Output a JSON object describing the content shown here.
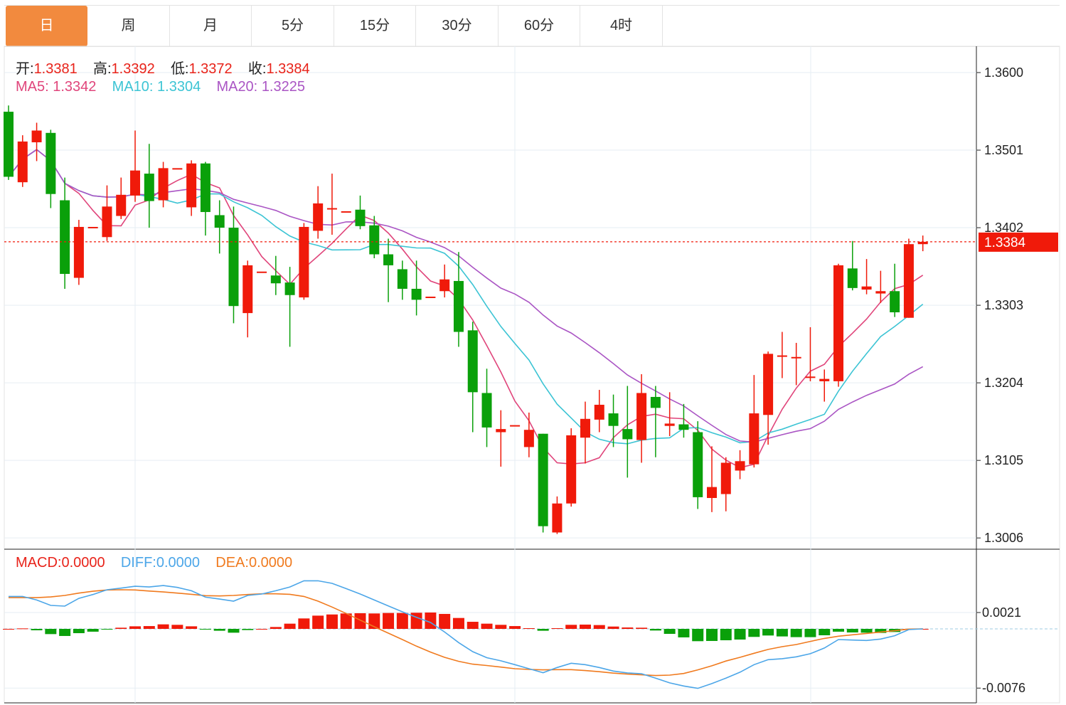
{
  "tabs": [
    {
      "label": "日",
      "active": true
    },
    {
      "label": "周"
    },
    {
      "label": "月"
    },
    {
      "label": "5分"
    },
    {
      "label": "15分"
    },
    {
      "label": "30分"
    },
    {
      "label": "60分"
    },
    {
      "label": "4时"
    }
  ],
  "ohlc_header": {
    "open_label": "开:",
    "open": "1.3381",
    "high_label": "高:",
    "high": "1.3392",
    "low_label": "低:",
    "low": "1.3372",
    "close_label": "收:",
    "close": "1.3384"
  },
  "ma_header": {
    "ma5_label": "MA5:",
    "ma5": "1.3342",
    "ma10_label": "MA10:",
    "ma10": "1.3304",
    "ma20_label": "MA20:",
    "ma20": "1.3225"
  },
  "macd_header": {
    "macd_label": "MACD:",
    "macd": "0.0000",
    "diff_label": "DIFF:",
    "diff": "0.0000",
    "dea_label": "DEA:",
    "dea": "0.0000"
  },
  "colors": {
    "up": "#F01A0A",
    "down": "#0AA00A",
    "ma5": "#E0457B",
    "ma10": "#3CC4D4",
    "ma20": "#AA55C4",
    "diff": "#4CA6E8",
    "dea": "#F07A1E",
    "tab_active": "#F28A3E"
  },
  "chart_data": [
    {
      "type": "candlestick",
      "up_color_meaning": "red = rise, green = fall",
      "y_ticks": [
        "1.3600",
        "1.3501",
        "1.3402",
        "1.3303",
        "1.3204",
        "1.3105",
        "1.3006"
      ],
      "ylim": [
        1.2986,
        1.364
      ],
      "last_price": "1.3384",
      "ma_periods": [
        5,
        10,
        20
      ],
      "grid": true,
      "ohlc": [
        [
          1.355,
          1.3558,
          1.3463,
          1.3467
        ],
        [
          1.346,
          1.352,
          1.3454,
          1.3512
        ],
        [
          1.3511,
          1.3536,
          1.3487,
          1.3526
        ],
        [
          1.3523,
          1.3527,
          1.3427,
          1.3445
        ],
        [
          1.3437,
          1.3466,
          1.3324,
          1.3343
        ],
        [
          1.3338,
          1.3412,
          1.3329,
          1.3403
        ],
        [
          1.3403,
          1.3403,
          1.3403,
          1.3403
        ],
        [
          1.339,
          1.3456,
          1.3385,
          1.3429
        ],
        [
          1.3417,
          1.3466,
          1.3413,
          1.3444
        ],
        [
          1.3443,
          1.3526,
          1.3435,
          1.3475
        ],
        [
          1.3471,
          1.3509,
          1.3402,
          1.3436
        ],
        [
          1.3437,
          1.3486,
          1.3428,
          1.3478
        ],
        [
          1.3478,
          1.3478,
          1.3478,
          1.3478
        ],
        [
          1.3428,
          1.3488,
          1.3417,
          1.3484
        ],
        [
          1.3484,
          1.3486,
          1.3392,
          1.3422
        ],
        [
          1.3418,
          1.3437,
          1.3369,
          1.3402
        ],
        [
          1.3402,
          1.3429,
          1.328,
          1.3302
        ],
        [
          1.3293,
          1.336,
          1.3262,
          1.3354
        ],
        [
          1.3346,
          1.3346,
          1.3346,
          1.3346
        ],
        [
          1.3341,
          1.3366,
          1.3316,
          1.3331
        ],
        [
          1.3332,
          1.3352,
          1.325,
          1.3316
        ],
        [
          1.3313,
          1.3408,
          1.331,
          1.3403
        ],
        [
          1.3398,
          1.3455,
          1.3388,
          1.3433
        ],
        [
          1.3427,
          1.3471,
          1.3393,
          1.3427
        ],
        [
          1.3423,
          1.3423,
          1.3423,
          1.3423
        ],
        [
          1.3425,
          1.3443,
          1.34,
          1.3404
        ],
        [
          1.3405,
          1.3417,
          1.3363,
          1.3368
        ],
        [
          1.3368,
          1.3388,
          1.3307,
          1.3354
        ],
        [
          1.3349,
          1.336,
          1.331,
          1.3324
        ],
        [
          1.3324,
          1.336,
          1.329,
          1.331
        ],
        [
          1.3314,
          1.3314,
          1.3314,
          1.3314
        ],
        [
          1.3321,
          1.3355,
          1.3313,
          1.3336
        ],
        [
          1.3334,
          1.3371,
          1.325,
          1.3269
        ],
        [
          1.3271,
          1.3282,
          1.3141,
          1.3192
        ],
        [
          1.3191,
          1.3222,
          1.3122,
          1.3147
        ],
        [
          1.3141,
          1.3169,
          1.3097,
          1.3145
        ],
        [
          1.315,
          1.315,
          1.315,
          1.315
        ],
        [
          1.3122,
          1.3166,
          1.3109,
          1.3144
        ],
        [
          1.3139,
          1.3139,
          1.3013,
          1.3021
        ],
        [
          1.3013,
          1.3059,
          1.3011,
          1.305
        ],
        [
          1.305,
          1.3146,
          1.3046,
          1.3137
        ],
        [
          1.3134,
          1.318,
          1.3101,
          1.3158
        ],
        [
          1.3157,
          1.3195,
          1.3141,
          1.3176
        ],
        [
          1.3165,
          1.3189,
          1.3122,
          1.3149
        ],
        [
          1.3145,
          1.32,
          1.3083,
          1.3132
        ],
        [
          1.3131,
          1.3215,
          1.3102,
          1.3191
        ],
        [
          1.3186,
          1.32,
          1.3109,
          1.3172
        ],
        [
          1.3149,
          1.3192,
          1.3136,
          1.3152
        ],
        [
          1.3151,
          1.3177,
          1.3134,
          1.3144
        ],
        [
          1.3141,
          1.3155,
          1.3043,
          1.3058
        ],
        [
          1.3057,
          1.3123,
          1.3039,
          1.3071
        ],
        [
          1.3062,
          1.3109,
          1.304,
          1.3102
        ],
        [
          1.3092,
          1.3118,
          1.3081,
          1.3104
        ],
        [
          1.31,
          1.3214,
          1.3096,
          1.3165
        ],
        [
          1.3163,
          1.3244,
          1.3125,
          1.3241
        ],
        [
          1.3239,
          1.3269,
          1.321,
          1.3239
        ],
        [
          1.3237,
          1.3255,
          1.3201,
          1.3237
        ],
        [
          1.3212,
          1.3275,
          1.3206,
          1.3212
        ],
        [
          1.3206,
          1.3221,
          1.318,
          1.3209
        ],
        [
          1.3206,
          1.3356,
          1.3199,
          1.3354
        ],
        [
          1.335,
          1.3385,
          1.3322,
          1.3325
        ],
        [
          1.3323,
          1.3362,
          1.3317,
          1.3327
        ],
        [
          1.3318,
          1.3347,
          1.3306,
          1.3321
        ],
        [
          1.3321,
          1.3356,
          1.3288,
          1.3294
        ],
        [
          1.3287,
          1.3388,
          1.3287,
          1.3381
        ],
        [
          1.3381,
          1.3392,
          1.3372,
          1.3384
        ]
      ]
    },
    {
      "type": "macd",
      "y_ticks": [
        "0.0021",
        "-0.0076"
      ],
      "macd": [
        0,
        6e-05,
        -0.00018,
        -0.00067,
        -0.00091,
        -0.00055,
        -0.00036,
        -6e-05,
        0.00015,
        0.00033,
        0.00036,
        0.00058,
        0.00052,
        0.00033,
        -3e-05,
        -0.00024,
        -0.00049,
        -0.00015,
        0,
        0.00024,
        0.00067,
        0.00134,
        0.0017,
        0.00185,
        0.00198,
        0.00201,
        0.00198,
        0.00204,
        0.00204,
        0.00207,
        0.0021,
        0.00192,
        0.0014,
        0.00091,
        0.00067,
        0.00052,
        0.00036,
        9e-05,
        -0.00024,
        9e-05,
        0.00052,
        0.00055,
        0.00049,
        0.0003,
        0.00018,
        0.00015,
        -0.00021,
        -0.00064,
        -0.00109,
        -0.00158,
        -0.00155,
        -0.00146,
        -0.00137,
        -0.00103,
        -0.00085,
        -0.00097,
        -0.00106,
        -0.00106,
        -0.00082,
        -0.00036,
        -0.00046,
        -0.00049,
        -0.00052,
        -0.0004,
        0,
        0
      ],
      "diff": [
        0.00416,
        0.00416,
        0.00371,
        0.00301,
        0.00292,
        0.00392,
        0.00441,
        0.00502,
        0.00523,
        0.00547,
        0.00538,
        0.00556,
        0.00532,
        0.00489,
        0.00407,
        0.00383,
        0.00356,
        0.00429,
        0.00447,
        0.00489,
        0.00538,
        0.00617,
        0.00617,
        0.00584,
        0.00517,
        0.00447,
        0.00371,
        0.00295,
        0.00219,
        0.00149,
        0.00082,
        -0.0004,
        -0.00176,
        -0.00292,
        -0.0037,
        -0.0041,
        -0.00459,
        -0.00511,
        -0.00562,
        -0.00496,
        -0.00441,
        -0.00459,
        -0.00496,
        -0.00541,
        -0.00565,
        -0.00575,
        -0.00632,
        -0.00693,
        -0.00733,
        -0.00763,
        -0.00702,
        -0.00632,
        -0.00556,
        -0.00459,
        -0.00395,
        -0.00383,
        -0.00359,
        -0.00319,
        -0.00246,
        -0.00137,
        -0.00143,
        -0.00149,
        -0.00131,
        -0.00088,
        -9e-05,
        0
      ],
      "dea": [
        0.00401,
        0.00401,
        0.00401,
        0.0041,
        0.00429,
        0.00459,
        0.00483,
        0.00499,
        0.00502,
        0.00499,
        0.00486,
        0.00474,
        0.00459,
        0.00444,
        0.00426,
        0.00423,
        0.00429,
        0.00441,
        0.0045,
        0.0045,
        0.00444,
        0.00416,
        0.00356,
        0.0028,
        0.00198,
        0.00112,
        0.00027,
        -0.00055,
        -0.00137,
        -0.00222,
        -0.00298,
        -0.00365,
        -0.00416,
        -0.00453,
        -0.0047,
        -0.0049,
        -0.00511,
        -0.0052,
        -0.00526,
        -0.00523,
        -0.00523,
        -0.00535,
        -0.0055,
        -0.00568,
        -0.00581,
        -0.0059,
        -0.00599,
        -0.00593,
        -0.00572,
        -0.00526,
        -0.00474,
        -0.00413,
        -0.00365,
        -0.00313,
        -0.00264,
        -0.00228,
        -0.00201,
        -0.00161,
        -0.00122,
        -0.00094,
        -0.00076,
        -0.00058,
        -0.0004,
        -0.00024,
        -3e-05,
        0
      ]
    }
  ]
}
